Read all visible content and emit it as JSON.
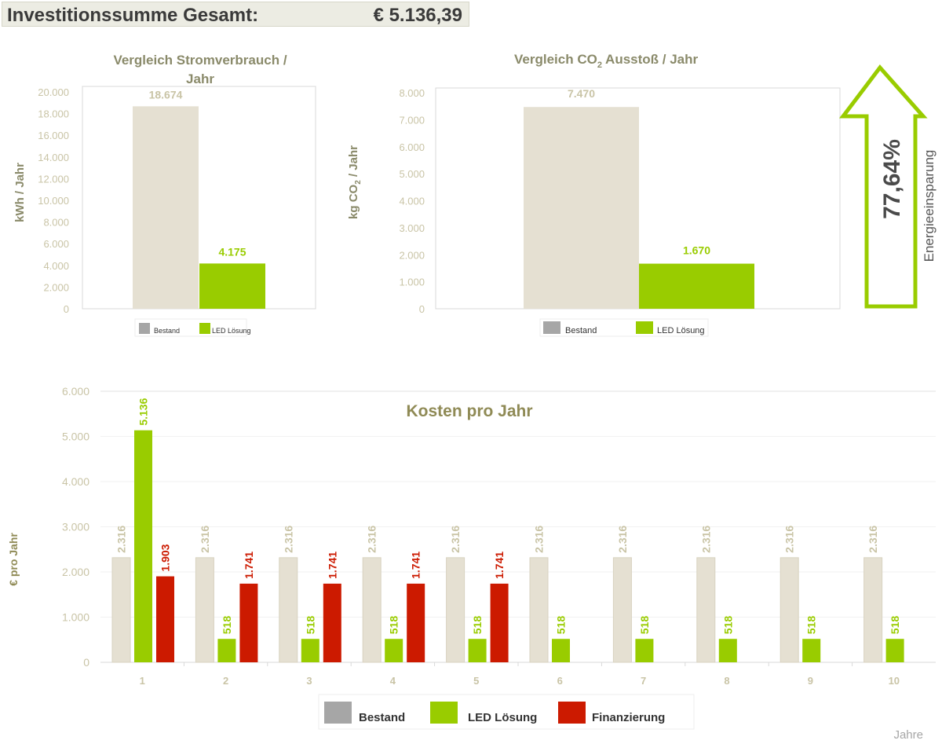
{
  "header": {
    "label": "Investitionssumme Gesamt:",
    "value": "€ 5.136,39"
  },
  "savings": {
    "percent": "77,64%",
    "label": "Energieeinsparung"
  },
  "colors": {
    "bestand": "#e5e0d2",
    "bestand_legend": "#a6a6a6",
    "led": "#99cc00",
    "finanzierung": "#cc1a00",
    "axis_text": "#c9c4a6",
    "title": "#8a8a6a",
    "chart3_title": "#8f8a55"
  },
  "chart_data": [
    {
      "type": "bar",
      "title": "Vergleich Stromverbrauch / Jahr",
      "title_lines": [
        "Vergleich Stromverbrauch /",
        "Jahr"
      ],
      "ylabel": "kWh / Jahr",
      "ylim": [
        0,
        20000
      ],
      "yticks": [
        "0",
        "2.000",
        "4.000",
        "6.000",
        "8.000",
        "10.000",
        "12.000",
        "14.000",
        "16.000",
        "18.000",
        "20.000"
      ],
      "series": [
        {
          "name": "Bestand",
          "values": [
            18674
          ],
          "label": "18.674"
        },
        {
          "name": "LED Lösung",
          "values": [
            4175
          ],
          "label": "4.175"
        }
      ],
      "legend": [
        "Bestand",
        "LED Lösung"
      ]
    },
    {
      "type": "bar",
      "title": "Vergleich CO2 Ausstoß / Jahr",
      "title_parts": [
        "Vergleich CO",
        "2",
        " Ausstoß / Jahr"
      ],
      "ylabel": "kg CO2 / Jahr",
      "ylabel_parts": [
        "kg CO",
        "2",
        " / Jahr"
      ],
      "ylim": [
        0,
        8000
      ],
      "yticks": [
        "0",
        "1.000",
        "2.000",
        "3.000",
        "4.000",
        "5.000",
        "6.000",
        "7.000",
        "8.000"
      ],
      "series": [
        {
          "name": "Bestand",
          "values": [
            7470
          ],
          "label": "7.470"
        },
        {
          "name": "LED Lösung",
          "values": [
            1670
          ],
          "label": "1.670"
        }
      ],
      "legend": [
        "Bestand",
        "LED Lösung"
      ]
    },
    {
      "type": "bar",
      "title": "Kosten pro Jahr",
      "ylabel": "€ pro Jahr",
      "xlabel": "Jahre",
      "ylim": [
        0,
        6000
      ],
      "yticks": [
        "0",
        "1.000",
        "2.000",
        "3.000",
        "4.000",
        "5.000",
        "6.000"
      ],
      "categories": [
        "1",
        "2",
        "3",
        "4",
        "5",
        "6",
        "7",
        "8",
        "9",
        "10"
      ],
      "series": [
        {
          "name": "Bestand",
          "values": [
            2316,
            2316,
            2316,
            2316,
            2316,
            2316,
            2316,
            2316,
            2316,
            2316
          ],
          "labels": [
            "2.316",
            "2.316",
            "2.316",
            "2.316",
            "2.316",
            "2.316",
            "2.316",
            "2.316",
            "2.316",
            "2.316"
          ]
        },
        {
          "name": "LED Lösung",
          "values": [
            5136,
            518,
            518,
            518,
            518,
            518,
            518,
            518,
            518,
            518
          ],
          "labels": [
            "5.136",
            "518",
            "518",
            "518",
            "518",
            "518",
            "518",
            "518",
            "518",
            "518"
          ]
        },
        {
          "name": "Finanzierung",
          "values": [
            1903,
            1741,
            1741,
            1741,
            1741,
            null,
            null,
            null,
            null,
            null
          ],
          "labels": [
            "1.903",
            "1.741",
            "1.741",
            "1.741",
            "1.741",
            "",
            "",
            "",
            "",
            ""
          ]
        }
      ],
      "legend": [
        "Bestand",
        "LED Lösung",
        "Finanzierung"
      ]
    }
  ]
}
